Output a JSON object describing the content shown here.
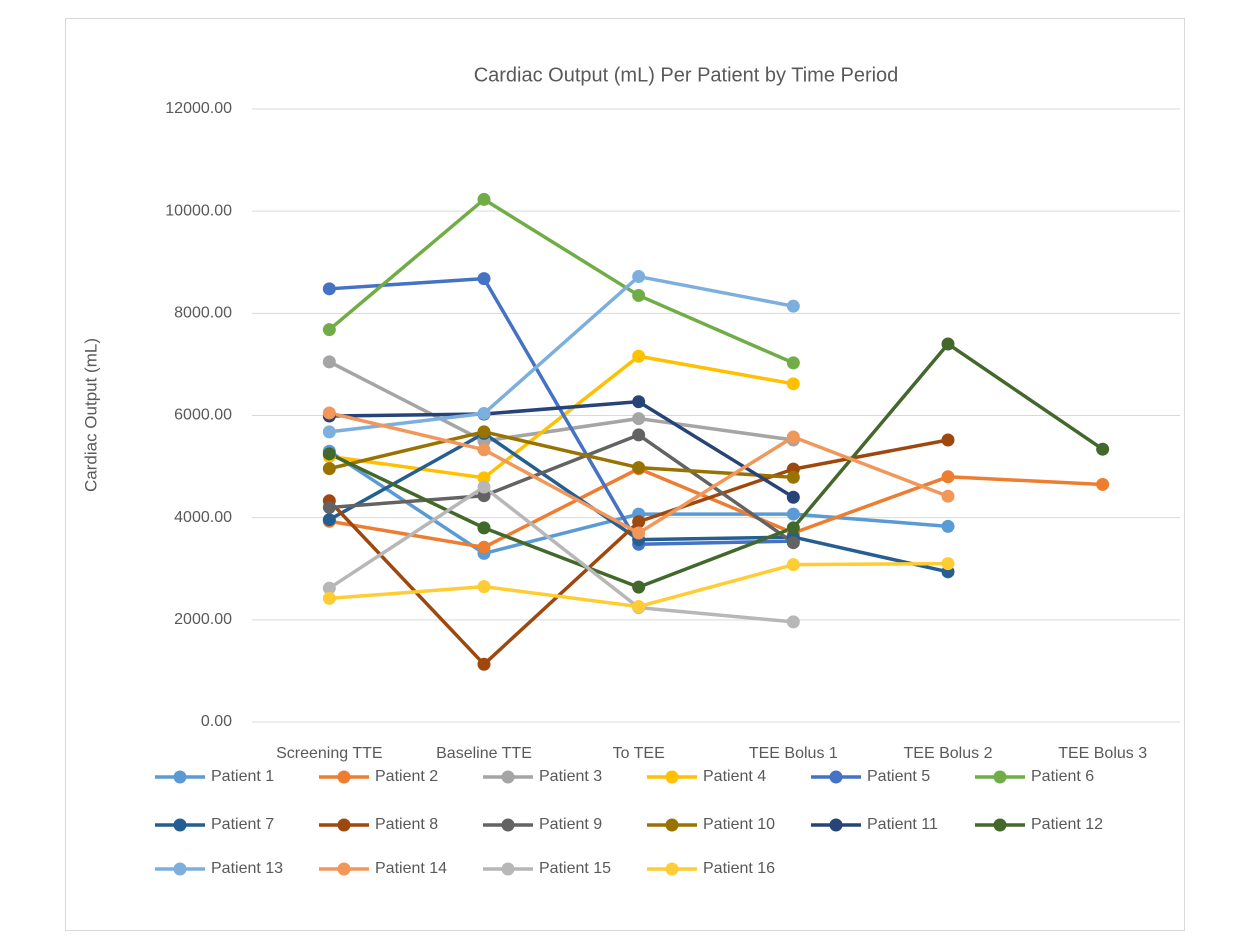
{
  "chart_data": {
    "type": "line",
    "title": "Cardiac Output (mL) Per Patient by Time Period",
    "y_label": "Cardiac Output (mL)",
    "categories": [
      "Screening TTE",
      "Baseline TTE",
      "To TEE",
      "TEE Bolus 1",
      "TEE Bolus 2",
      "TEE Bolus 3"
    ],
    "ylim": [
      0,
      12000
    ],
    "yticks": [
      {
        "value": 0,
        "label": "0.00"
      },
      {
        "value": 2000,
        "label": "2000.00"
      },
      {
        "value": 4000,
        "label": "4000.00"
      },
      {
        "value": 6000,
        "label": "6000.00"
      },
      {
        "value": 8000,
        "label": "8000.00"
      },
      {
        "value": 10000,
        "label": "10000.00"
      },
      {
        "value": 12000,
        "label": "12000.00"
      }
    ],
    "grid": true,
    "legend": "bottom",
    "series": [
      {
        "name": "Patient 1",
        "color": "#5b9bd5",
        "values": [
          5300,
          3300,
          4070,
          4070,
          3830,
          null
        ]
      },
      {
        "name": "Patient 2",
        "color": "#ed7d31",
        "values": [
          3930,
          3420,
          4960,
          3700,
          4800,
          4650
        ]
      },
      {
        "name": "Patient 3",
        "color": "#a5a5a5",
        "values": [
          7050,
          5500,
          5940,
          5520,
          null,
          null
        ]
      },
      {
        "name": "Patient 4",
        "color": "#ffc000",
        "values": [
          5200,
          4780,
          7160,
          6620,
          null,
          null
        ]
      },
      {
        "name": "Patient 5",
        "color": "#4472c4",
        "values": [
          8480,
          8680,
          3480,
          3540,
          null,
          null
        ]
      },
      {
        "name": "Patient 6",
        "color": "#70ad47",
        "values": [
          7680,
          10230,
          8350,
          7030,
          null,
          null
        ]
      },
      {
        "name": "Patient 7",
        "color": "#255e91",
        "values": [
          3960,
          5650,
          3570,
          3620,
          2940,
          null
        ]
      },
      {
        "name": "Patient 8",
        "color": "#9e480e",
        "values": [
          4330,
          1130,
          3920,
          4950,
          5520,
          null
        ]
      },
      {
        "name": "Patient 9",
        "color": "#636363",
        "values": [
          4200,
          4430,
          5620,
          3510,
          null,
          null
        ]
      },
      {
        "name": "Patient 10",
        "color": "#997300",
        "values": [
          4960,
          5680,
          4980,
          4790,
          null,
          null
        ]
      },
      {
        "name": "Patient 11",
        "color": "#264478",
        "values": [
          5990,
          6030,
          6270,
          4400,
          null,
          null
        ]
      },
      {
        "name": "Patient 12",
        "color": "#43682b",
        "values": [
          5250,
          3800,
          2640,
          3800,
          7400,
          5340
        ]
      },
      {
        "name": "Patient 13",
        "color": "#7cafdd",
        "values": [
          5680,
          6040,
          8720,
          8140,
          null,
          null
        ]
      },
      {
        "name": "Patient 14",
        "color": "#f1975a",
        "values": [
          6050,
          5330,
          3700,
          5580,
          4420,
          null
        ]
      },
      {
        "name": "Patient 15",
        "color": "#b7b7b7",
        "values": [
          2620,
          4600,
          2240,
          1960,
          null,
          null
        ]
      },
      {
        "name": "Patient 16",
        "color": "#ffcd33",
        "values": [
          2420,
          2650,
          2260,
          3080,
          3100,
          null
        ]
      }
    ]
  }
}
